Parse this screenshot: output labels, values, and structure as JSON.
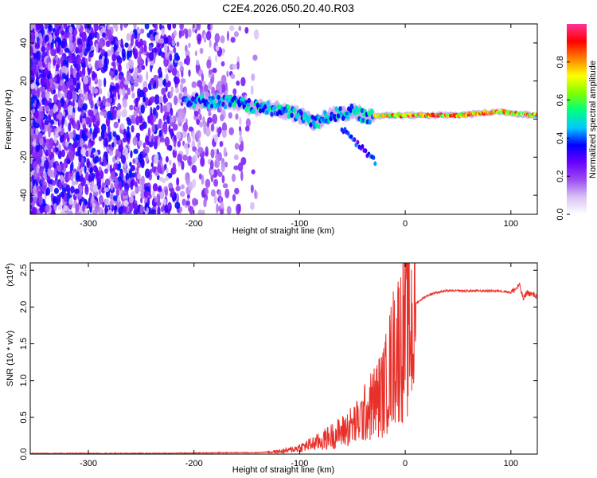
{
  "title": "C2E4.2026.050.20.40.R03",
  "chart_data": [
    {
      "type": "heatmap",
      "name": "spectrogram",
      "xlabel": "Height of straight line (km)",
      "ylabel": "Frequency (Hz)",
      "xlim": [
        -355,
        125
      ],
      "ylim": [
        -50,
        50
      ],
      "xticks": [
        -300,
        -200,
        -100,
        0,
        100
      ],
      "yticks": [
        -40,
        -20,
        0,
        20,
        40
      ],
      "colorbar": {
        "label": "Normalized spectral amplitude",
        "range": [
          0.0,
          1.0
        ],
        "ticks": [
          0.0,
          0.2,
          0.4,
          0.6,
          0.8
        ],
        "tick_labels": [
          "0.0",
          "0.2",
          "0.4",
          "0.6",
          "0.8"
        ],
        "colormap": [
          "#ffffff",
          "#d9c2f5",
          "#9a4cf0",
          "#6a00ff",
          "#0000ff",
          "#00c8ff",
          "#00ff80",
          "#80ff00",
          "#ffff00",
          "#ff8000",
          "#ff0000",
          "#ff3399"
        ]
      },
      "ridge": {
        "description_points": [
          {
            "x": -210,
            "freq": 10,
            "amp": 0.45
          },
          {
            "x": -165,
            "freq": 9,
            "amp": 0.5
          },
          {
            "x": -140,
            "freq": 6,
            "amp": 0.55
          },
          {
            "x": -120,
            "freq": 5,
            "amp": 0.55
          },
          {
            "x": -100,
            "freq": 2,
            "amp": 0.5
          },
          {
            "x": -85,
            "freq": -2,
            "amp": 0.5
          },
          {
            "x": -70,
            "freq": 2,
            "amp": 0.5
          },
          {
            "x": -50,
            "freq": 4,
            "amp": 0.5
          },
          {
            "x": -35,
            "freq": 1,
            "amp": 0.6
          },
          {
            "x": -20,
            "freq": 2,
            "amp": 0.85
          },
          {
            "x": 0,
            "freq": 2,
            "amp": 0.9
          },
          {
            "x": 50,
            "freq": 2,
            "amp": 0.9
          },
          {
            "x": 90,
            "freq": 4,
            "amp": 0.9
          },
          {
            "x": 120,
            "freq": 2,
            "amp": 0.8
          }
        ]
      }
    },
    {
      "type": "line",
      "name": "snr",
      "xlabel": "Height of straight line (km)",
      "ylabel": "SNR (10 * v/v)",
      "scale_label": "(x10",
      "scale_exp": "4",
      "scale_close": ")",
      "xlim": [
        -355,
        125
      ],
      "ylim": [
        0,
        2.6
      ],
      "xticks": [
        -300,
        -200,
        -100,
        0,
        100
      ],
      "yticks": [
        0.0,
        0.5,
        1.0,
        1.5,
        2.0,
        2.5
      ],
      "ytick_labels": [
        "0.0",
        "0.5",
        "1.0",
        "1.5",
        "2.0",
        "2.5"
      ],
      "series": [
        {
          "name": "SNR",
          "color": "#e8302a",
          "x": [
            -355,
            -300,
            -250,
            -200,
            -160,
            -140,
            -120,
            -110,
            -100,
            -90,
            -80,
            -70,
            -60,
            -50,
            -45,
            -40,
            -35,
            -30,
            -25,
            -20,
            -15,
            -10,
            -5,
            0,
            5,
            10,
            15,
            20,
            25,
            30,
            40,
            50,
            60,
            70,
            80,
            90,
            100,
            105,
            108,
            112,
            115,
            120,
            125
          ],
          "y": [
            0.01,
            0.01,
            0.01,
            0.015,
            0.02,
            0.02,
            0.04,
            0.06,
            0.1,
            0.15,
            0.2,
            0.28,
            0.35,
            0.45,
            0.5,
            0.6,
            0.7,
            0.8,
            0.9,
            1.0,
            1.3,
            1.6,
            1.75,
            1.9,
            2.0,
            2.05,
            2.1,
            2.15,
            2.18,
            2.2,
            2.22,
            2.22,
            2.22,
            2.22,
            2.22,
            2.22,
            2.2,
            2.25,
            2.3,
            2.1,
            2.2,
            2.17,
            2.15
          ]
        }
      ]
    }
  ]
}
